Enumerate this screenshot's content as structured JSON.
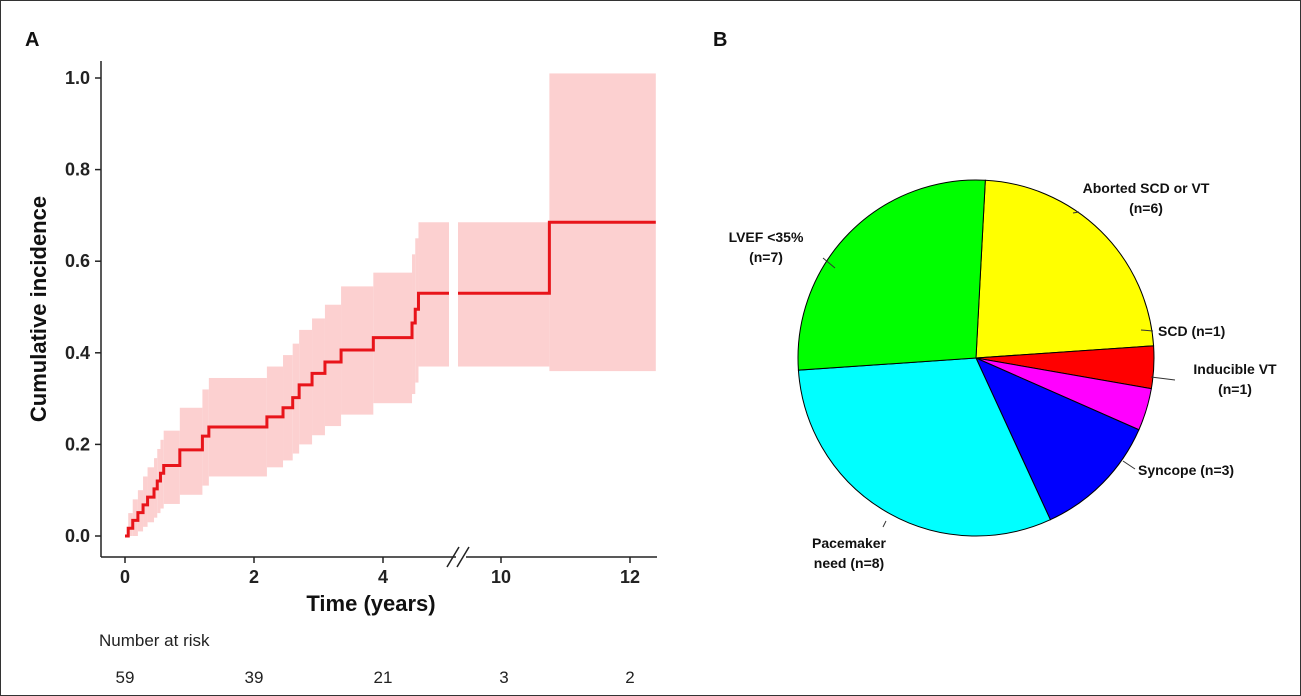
{
  "chart_data": [
    {
      "panel": "A",
      "type": "line",
      "xlabel": "Time (years)",
      "ylabel": "Cumulative incidence",
      "xticks": [
        0,
        2,
        4,
        10,
        12
      ],
      "yticks": [
        "0.0",
        "0.2",
        "0.4",
        "0.6",
        "0.8",
        "1.0"
      ],
      "ylim": [
        0,
        1.0
      ],
      "axis_break": {
        "from": 5.2,
        "to": 9.0
      },
      "grid": false,
      "series": [
        {
          "color": "#e8141a",
          "band_color": "#fcd0d0",
          "points": [
            {
              "x": 0,
              "y": 0.0,
              "lo": 0.0,
              "hi": 0.0
            },
            {
              "x": 0.05,
              "y": 0.017,
              "lo": 0.0,
              "hi": 0.05
            },
            {
              "x": 0.12,
              "y": 0.034,
              "lo": 0.0,
              "hi": 0.08
            },
            {
              "x": 0.2,
              "y": 0.051,
              "lo": 0.01,
              "hi": 0.1
            },
            {
              "x": 0.28,
              "y": 0.068,
              "lo": 0.02,
              "hi": 0.13
            },
            {
              "x": 0.35,
              "y": 0.085,
              "lo": 0.03,
              "hi": 0.15
            },
            {
              "x": 0.45,
              "y": 0.103,
              "lo": 0.04,
              "hi": 0.17
            },
            {
              "x": 0.5,
              "y": 0.12,
              "lo": 0.05,
              "hi": 0.19
            },
            {
              "x": 0.55,
              "y": 0.137,
              "lo": 0.06,
              "hi": 0.21
            },
            {
              "x": 0.6,
              "y": 0.154,
              "lo": 0.07,
              "hi": 0.23
            },
            {
              "x": 0.85,
              "y": 0.188,
              "lo": 0.09,
              "hi": 0.28
            },
            {
              "x": 1.2,
              "y": 0.218,
              "lo": 0.11,
              "hi": 0.32
            },
            {
              "x": 1.3,
              "y": 0.238,
              "lo": 0.13,
              "hi": 0.345
            },
            {
              "x": 2.2,
              "y": 0.26,
              "lo": 0.15,
              "hi": 0.37
            },
            {
              "x": 2.45,
              "y": 0.28,
              "lo": 0.165,
              "hi": 0.395
            },
            {
              "x": 2.6,
              "y": 0.302,
              "lo": 0.18,
              "hi": 0.42
            },
            {
              "x": 2.7,
              "y": 0.33,
              "lo": 0.2,
              "hi": 0.45
            },
            {
              "x": 2.9,
              "y": 0.355,
              "lo": 0.22,
              "hi": 0.475
            },
            {
              "x": 3.1,
              "y": 0.38,
              "lo": 0.24,
              "hi": 0.505
            },
            {
              "x": 3.35,
              "y": 0.406,
              "lo": 0.265,
              "hi": 0.545
            },
            {
              "x": 3.85,
              "y": 0.433,
              "lo": 0.29,
              "hi": 0.575
            },
            {
              "x": 4.45,
              "y": 0.465,
              "lo": 0.31,
              "hi": 0.615
            },
            {
              "x": 4.5,
              "y": 0.495,
              "lo": 0.335,
              "hi": 0.65
            },
            {
              "x": 4.55,
              "y": 0.53,
              "lo": 0.37,
              "hi": 0.685
            },
            {
              "x": 10.75,
              "y": 0.685,
              "lo": 0.36,
              "hi": 1.01
            }
          ],
          "end_x": 12.4
        }
      ],
      "risk_table": {
        "title": "Number at risk",
        "values": [
          "59",
          "39",
          "21",
          "3",
          "2"
        ]
      }
    },
    {
      "panel": "B",
      "type": "pie",
      "edge_color": "#000000",
      "slices": [
        {
          "label_lines": [
            "Aborted SCD or VT",
            "(n=6)"
          ],
          "value": 6,
          "color": "#ffff00"
        },
        {
          "label_lines": [
            "SCD (n=1)"
          ],
          "value": 1,
          "color": "#ff0000"
        },
        {
          "label_lines": [
            "Inducible VT",
            "(n=1)"
          ],
          "value": 1,
          "color": "#ff00ff"
        },
        {
          "label_lines": [
            "Syncope (n=3)"
          ],
          "value": 3,
          "color": "#0000ff"
        },
        {
          "label_lines": [
            "Pacemaker",
            "need (n=8)"
          ],
          "value": 8,
          "color": "#00ffff"
        },
        {
          "label_lines": [
            "LVEF <35%",
            "(n=7)"
          ],
          "value": 7,
          "color": "#00ff00"
        }
      ]
    }
  ]
}
